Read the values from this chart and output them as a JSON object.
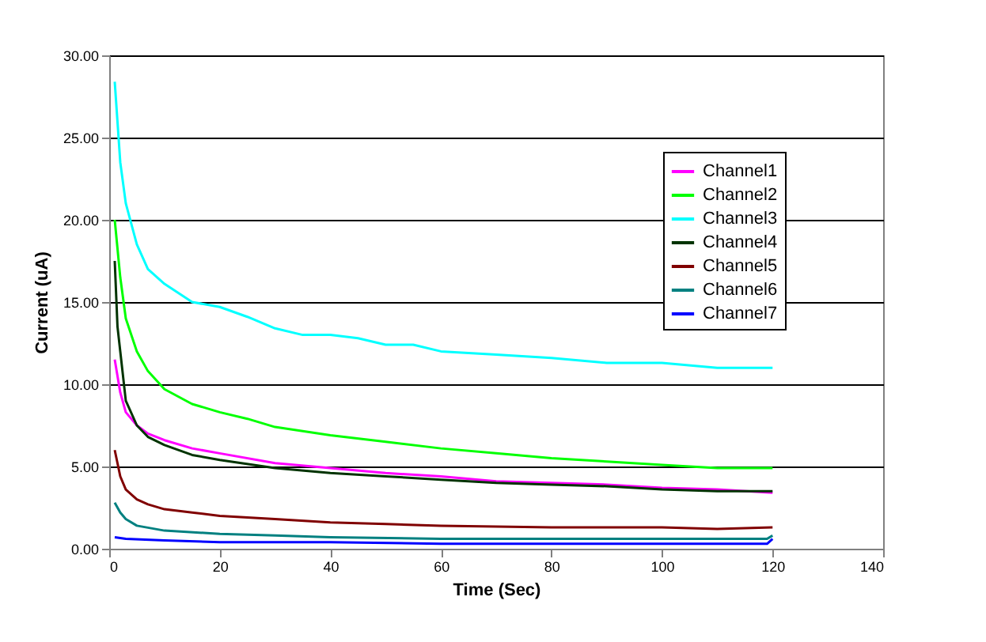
{
  "chart_data": {
    "type": "line",
    "xlabel": "Time (Sec)",
    "ylabel": "Current (uA)",
    "xlim": [
      0,
      140
    ],
    "xticks": [
      0,
      20,
      40,
      60,
      80,
      100,
      120,
      140
    ],
    "ylim": [
      0,
      30
    ],
    "yticks": [
      {
        "value": 0,
        "label": "0.00"
      },
      {
        "value": 5,
        "label": "5.00"
      },
      {
        "value": 10,
        "label": "10.00"
      },
      {
        "value": 15,
        "label": "15.00"
      },
      {
        "value": 20,
        "label": "20.00"
      },
      {
        "value": 25,
        "label": "25.00"
      },
      {
        "value": 30,
        "label": "30.00"
      }
    ],
    "grid": "y",
    "legend": "top right",
    "marker": "none",
    "line_style": "solid",
    "series": [
      {
        "name": "Channel1",
        "color": "#ff00ff",
        "x": [
          1,
          2,
          3,
          5,
          7,
          10,
          15,
          20,
          30,
          40,
          50,
          60,
          70,
          80,
          90,
          100,
          110,
          120
        ],
        "values": [
          11.5,
          9.5,
          8.3,
          7.5,
          7.0,
          6.6,
          6.1,
          5.8,
          5.2,
          4.9,
          4.6,
          4.4,
          4.1,
          4.0,
          3.9,
          3.7,
          3.6,
          3.4
        ]
      },
      {
        "name": "Channel2",
        "color": "#00ff00",
        "x": [
          1,
          2,
          3,
          5,
          7,
          10,
          15,
          20,
          25,
          30,
          40,
          50,
          60,
          70,
          80,
          90,
          100,
          110,
          120
        ],
        "values": [
          20,
          16.5,
          14,
          12,
          10.8,
          9.7,
          8.8,
          8.3,
          7.9,
          7.4,
          6.9,
          6.5,
          6.1,
          5.8,
          5.5,
          5.3,
          5.1,
          4.9,
          4.9
        ]
      },
      {
        "name": "Channel3",
        "color": "#00ffff",
        "x": [
          1,
          2,
          3,
          5,
          7,
          10,
          15,
          20,
          25,
          30,
          35,
          40,
          45,
          50,
          55,
          60,
          70,
          80,
          90,
          100,
          110,
          120
        ],
        "values": [
          28.4,
          23.5,
          21,
          18.5,
          17,
          16.1,
          15,
          14.7,
          14.1,
          13.4,
          13.0,
          13.0,
          12.8,
          12.4,
          12.4,
          12.0,
          11.8,
          11.6,
          11.3,
          11.3,
          11.0,
          11.0
        ]
      },
      {
        "name": "Channel4",
        "color": "#003300",
        "x": [
          1,
          1.5,
          2,
          3,
          5,
          7,
          10,
          15,
          20,
          30,
          40,
          50,
          60,
          70,
          80,
          90,
          100,
          110,
          120
        ],
        "values": [
          17.5,
          13.5,
          12,
          9,
          7.5,
          6.8,
          6.3,
          5.7,
          5.4,
          4.9,
          4.6,
          4.4,
          4.2,
          4.0,
          3.9,
          3.8,
          3.6,
          3.5,
          3.5
        ]
      },
      {
        "name": "Channel5",
        "color": "#800000",
        "x": [
          1,
          2,
          3,
          5,
          7,
          10,
          15,
          20,
          30,
          40,
          50,
          60,
          80,
          100,
          110,
          120
        ],
        "values": [
          6,
          4.4,
          3.6,
          3.0,
          2.7,
          2.4,
          2.2,
          2.0,
          1.8,
          1.6,
          1.5,
          1.4,
          1.3,
          1.3,
          1.2,
          1.3
        ]
      },
      {
        "name": "Channel6",
        "color": "#008080",
        "x": [
          1,
          2,
          3,
          5,
          10,
          20,
          30,
          40,
          60,
          80,
          100,
          119,
          120
        ],
        "values": [
          2.8,
          2.2,
          1.8,
          1.4,
          1.1,
          0.9,
          0.8,
          0.7,
          0.6,
          0.6,
          0.6,
          0.6,
          0.8
        ]
      },
      {
        "name": "Channel7",
        "color": "#0000ff",
        "x": [
          1,
          3,
          10,
          20,
          40,
          60,
          80,
          100,
          119,
          120
        ],
        "values": [
          0.7,
          0.6,
          0.5,
          0.4,
          0.4,
          0.3,
          0.3,
          0.3,
          0.3,
          0.6
        ]
      }
    ]
  }
}
